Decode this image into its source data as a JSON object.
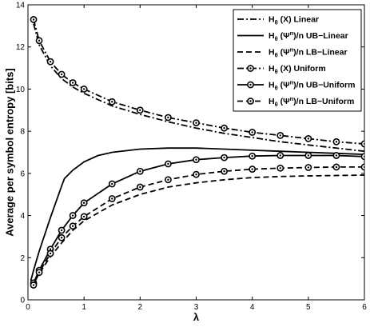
{
  "chart_data": {
    "type": "line",
    "xlabel": "λ",
    "ylabel": "Average per symbol entropy [bits]",
    "xlim": [
      0,
      6
    ],
    "ylim": [
      0,
      14
    ],
    "xticks": [
      0,
      1,
      2,
      3,
      4,
      5,
      6
    ],
    "yticks": [
      0,
      2,
      4,
      6,
      8,
      10,
      12,
      14
    ],
    "grid": false,
    "legend_position": "top-right",
    "series": [
      {
        "name": "Hθ(X) Linear",
        "legend": {
          "main": "H",
          "sub": "θ",
          "rest": " (X) Linear"
        },
        "line_style": "dashdot",
        "marker": "none",
        "color": "#000000",
        "x": [
          0.1,
          0.2,
          0.4,
          0.6,
          0.8,
          1.0,
          1.5,
          2.0,
          2.5,
          3.0,
          3.5,
          4.0,
          4.5,
          5.0,
          5.5,
          6.0
        ],
        "y": [
          13.1,
          12.1,
          11.1,
          10.5,
          10.1,
          9.8,
          9.2,
          8.8,
          8.45,
          8.15,
          7.9,
          7.7,
          7.5,
          7.35,
          7.2,
          7.05
        ]
      },
      {
        "name": "Hθ(Ψn)/n UB-Linear",
        "legend": {
          "main": "H",
          "sub": "θ",
          "rest": " (Ψ",
          "sup": "n",
          "rest2": ")/n UB−Linear"
        },
        "line_style": "solid",
        "marker": "none",
        "color": "#000000",
        "x": [
          0.05,
          0.1,
          0.2,
          0.4,
          0.6,
          0.65,
          0.8,
          1.0,
          1.25,
          1.5,
          2.0,
          2.5,
          3.0,
          3.5,
          4.0,
          4.5,
          5.0,
          5.5,
          6.0
        ],
        "y": [
          0.9,
          1.4,
          2.3,
          3.9,
          5.4,
          5.75,
          6.15,
          6.55,
          6.85,
          7.0,
          7.15,
          7.2,
          7.2,
          7.15,
          7.1,
          7.05,
          7.0,
          6.95,
          6.9
        ]
      },
      {
        "name": "Hθ(Ψn)/n LB-Linear",
        "legend": {
          "main": "H",
          "sub": "θ",
          "rest": " (Ψ",
          "sup": "n",
          "rest2": ")/n LB−Linear"
        },
        "line_style": "dashed",
        "marker": "none",
        "color": "#000000",
        "x": [
          0.05,
          0.1,
          0.2,
          0.4,
          0.6,
          0.8,
          1.0,
          1.5,
          2.0,
          2.5,
          3.0,
          3.5,
          4.0,
          4.5,
          5.0,
          5.5,
          6.0
        ],
        "y": [
          0.6,
          0.75,
          1.25,
          2.05,
          2.7,
          3.3,
          3.75,
          4.5,
          5.0,
          5.35,
          5.55,
          5.7,
          5.8,
          5.85,
          5.88,
          5.9,
          5.92
        ]
      },
      {
        "name": "Hθ(X) Uniform",
        "legend": {
          "main": "H",
          "sub": "θ",
          "rest": " (X) Uniform"
        },
        "line_style": "dashdot",
        "marker": "circle-dot",
        "color": "#000000",
        "x": [
          0.1,
          0.2,
          0.4,
          0.6,
          0.8,
          1.0,
          1.5,
          2.0,
          2.5,
          3.0,
          3.5,
          4.0,
          4.5,
          5.0,
          5.5,
          6.0
        ],
        "y": [
          13.3,
          12.3,
          11.3,
          10.7,
          10.3,
          10.0,
          9.4,
          9.0,
          8.65,
          8.4,
          8.15,
          7.95,
          7.8,
          7.65,
          7.5,
          7.4
        ]
      },
      {
        "name": "Hθ(Ψn)/n UB-Uniform",
        "legend": {
          "main": "H",
          "sub": "θ",
          "rest": " (Ψ",
          "sup": "n",
          "rest2": ")/n UB−Uniform"
        },
        "line_style": "solid",
        "marker": "circle-dot",
        "color": "#000000",
        "x": [
          0.1,
          0.2,
          0.4,
          0.6,
          0.8,
          1.0,
          1.5,
          2.0,
          2.5,
          3.0,
          3.5,
          4.0,
          4.5,
          5.0,
          5.5,
          6.0
        ],
        "y": [
          0.8,
          1.4,
          2.4,
          3.3,
          4.0,
          4.6,
          5.5,
          6.1,
          6.45,
          6.65,
          6.75,
          6.82,
          6.85,
          6.85,
          6.85,
          6.8
        ]
      },
      {
        "name": "Hθ(Ψn)/n LB-Uniform",
        "legend": {
          "main": "H",
          "sub": "θ",
          "rest": " (Ψ",
          "sup": "n",
          "rest2": ")/n LB−Uniform"
        },
        "line_style": "dashed",
        "marker": "circle-dot",
        "color": "#000000",
        "x": [
          0.1,
          0.2,
          0.4,
          0.6,
          0.8,
          1.0,
          1.5,
          2.0,
          2.5,
          3.0,
          3.5,
          4.0,
          4.5,
          5.0,
          5.5,
          6.0
        ],
        "y": [
          0.7,
          1.3,
          2.2,
          2.95,
          3.5,
          3.95,
          4.8,
          5.35,
          5.7,
          5.95,
          6.1,
          6.2,
          6.25,
          6.28,
          6.3,
          6.3
        ]
      }
    ]
  }
}
